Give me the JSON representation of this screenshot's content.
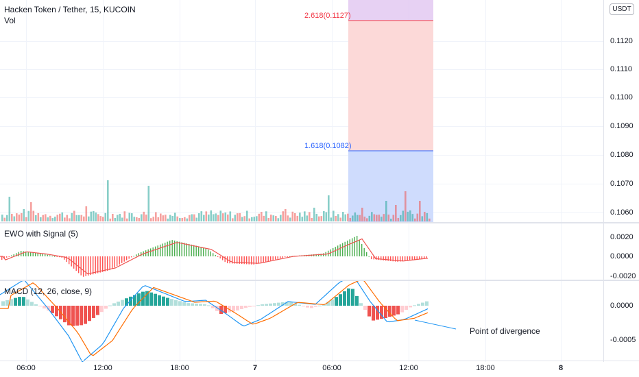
{
  "header": {
    "symbol_title": "Hacken Token / Tether, 15, KUCOIN",
    "vol_label": "Vol",
    "currency_button": "USDT"
  },
  "price_axis": [
    "0.1120",
    "0.1110",
    "0.1100",
    "0.1090",
    "0.1080",
    "0.1070",
    "0.1060"
  ],
  "time_axis": [
    "06:00",
    "12:00",
    "18:00",
    "7",
    "06:00",
    "12:00",
    "18:00",
    "8"
  ],
  "fib_levels": [
    {
      "label": "2.618(0.1127)",
      "color": "#f23645"
    },
    {
      "label": "1.618(0.1082)",
      "color": "#2962ff"
    }
  ],
  "ewo": {
    "title": "EWO with Signal (5)",
    "axis": [
      "0.0020",
      "0.0000",
      "-0.0020"
    ]
  },
  "macd": {
    "title": "MACD (12, 26, close, 9)",
    "axis": [
      "0.0000",
      "-0.0005"
    ]
  },
  "annotation": "Point of divergence",
  "colors": {
    "up": "#26a69a",
    "down": "#ef5350",
    "macd_line": "#2196f3",
    "signal_line": "#ff6d00",
    "ewo_up": "#4caf50",
    "ewo_down": "#ff5252"
  }
}
